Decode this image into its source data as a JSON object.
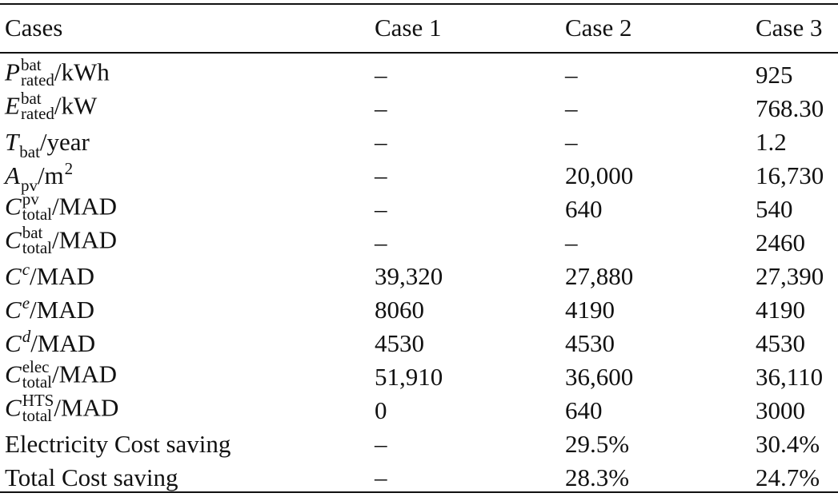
{
  "header": [
    "Cases",
    "Case 1",
    "Case 2",
    "Case 3"
  ],
  "rows": [
    {
      "sym": "P",
      "sup": "bat",
      "sub": "rated",
      "unit": "/kWh",
      "values": [
        "–",
        "–",
        "925"
      ]
    },
    {
      "sym": "E",
      "sup": "bat",
      "sub": "rated",
      "unit": "/kW",
      "values": [
        "–",
        "–",
        "768.30"
      ]
    },
    {
      "sym": "T",
      "sub": "bat",
      "unit": "/year",
      "values": [
        "–",
        "–",
        "1.2"
      ]
    },
    {
      "sym": "A",
      "sub": "pv",
      "sup": "2",
      "unit": "/m",
      "values": [
        "–",
        "20,000",
        "16,730"
      ]
    },
    {
      "sym": "C",
      "sup": "pv",
      "sub": "total",
      "unit": "/MAD",
      "values": [
        "–",
        "640",
        "540"
      ]
    },
    {
      "sym": "C",
      "sup": "bat",
      "sub": "total",
      "unit": "/MAD",
      "values": [
        "–",
        "–",
        "2460"
      ]
    },
    {
      "sym": "C",
      "sup": "c",
      "unit": "/MAD",
      "values": [
        "39,320",
        "27,880",
        "27,390"
      ]
    },
    {
      "sym": "C",
      "sup": "e",
      "unit": "/MAD",
      "values": [
        "8060",
        "4190",
        "4190"
      ]
    },
    {
      "sym": "C",
      "sup": "d",
      "unit": "/MAD",
      "values": [
        "4530",
        "4530",
        "4530"
      ]
    },
    {
      "sym": "C",
      "sup": "elec",
      "sub": "total",
      "unit": "/MAD",
      "values": [
        "51,910",
        "36,600",
        "36,110"
      ]
    },
    {
      "sym": "C",
      "sup": "HTS",
      "sub": "total",
      "unit": "/MAD",
      "values": [
        "0",
        "640",
        "3000"
      ]
    },
    {
      "label": "Electricity Cost saving",
      "values": [
        "–",
        "29.5%",
        "30.4%"
      ]
    },
    {
      "label": "Total Cost saving",
      "values": [
        "–",
        "28.3%",
        "24.7%"
      ]
    }
  ]
}
